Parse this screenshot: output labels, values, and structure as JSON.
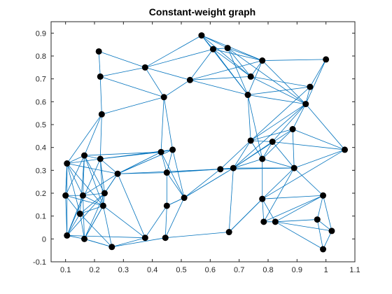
{
  "chart_data": {
    "type": "scatter",
    "title": "Constant-weight graph",
    "xlabel": "",
    "ylabel": "",
    "xlim": [
      0.05,
      1.1
    ],
    "ylim": [
      -0.1,
      0.95
    ],
    "xticks": [
      "0.1",
      "0.2",
      "0.3",
      "0.4",
      "0.5",
      "0.6",
      "0.7",
      "0.8",
      "0.9",
      "1",
      "1.1"
    ],
    "yticks": [
      "-0.1",
      "0",
      "0.1",
      "0.2",
      "0.3",
      "0.4",
      "0.5",
      "0.6",
      "0.7",
      "0.8",
      "0.9"
    ],
    "grid": false,
    "colors": {
      "edge": "#0072bd",
      "node": "#000000",
      "axis": "#262626"
    },
    "nodes": [
      {
        "x": 0.57,
        "y": 0.89
      },
      {
        "x": 0.61,
        "y": 0.83
      },
      {
        "x": 0.66,
        "y": 0.835
      },
      {
        "x": 0.78,
        "y": 0.78
      },
      {
        "x": 1.0,
        "y": 0.785
      },
      {
        "x": 0.74,
        "y": 0.71
      },
      {
        "x": 0.945,
        "y": 0.665
      },
      {
        "x": 0.73,
        "y": 0.63
      },
      {
        "x": 0.93,
        "y": 0.59
      },
      {
        "x": 0.53,
        "y": 0.695
      },
      {
        "x": 0.375,
        "y": 0.75
      },
      {
        "x": 0.215,
        "y": 0.82
      },
      {
        "x": 0.22,
        "y": 0.71
      },
      {
        "x": 0.44,
        "y": 0.62
      },
      {
        "x": 0.225,
        "y": 0.545
      },
      {
        "x": 0.885,
        "y": 0.48
      },
      {
        "x": 0.74,
        "y": 0.43
      },
      {
        "x": 0.815,
        "y": 0.425
      },
      {
        "x": 1.065,
        "y": 0.39
      },
      {
        "x": 0.47,
        "y": 0.39
      },
      {
        "x": 0.43,
        "y": 0.38
      },
      {
        "x": 0.165,
        "y": 0.365
      },
      {
        "x": 0.22,
        "y": 0.35
      },
      {
        "x": 0.105,
        "y": 0.33
      },
      {
        "x": 0.78,
        "y": 0.35
      },
      {
        "x": 0.89,
        "y": 0.31
      },
      {
        "x": 0.68,
        "y": 0.31
      },
      {
        "x": 0.635,
        "y": 0.305
      },
      {
        "x": 0.45,
        "y": 0.29
      },
      {
        "x": 0.28,
        "y": 0.285
      },
      {
        "x": 0.1,
        "y": 0.19
      },
      {
        "x": 0.16,
        "y": 0.19
      },
      {
        "x": 0.235,
        "y": 0.2
      },
      {
        "x": 0.51,
        "y": 0.18
      },
      {
        "x": 0.78,
        "y": 0.175
      },
      {
        "x": 0.99,
        "y": 0.19
      },
      {
        "x": 0.23,
        "y": 0.145
      },
      {
        "x": 0.45,
        "y": 0.145
      },
      {
        "x": 0.15,
        "y": 0.11
      },
      {
        "x": 0.97,
        "y": 0.085
      },
      {
        "x": 0.785,
        "y": 0.075
      },
      {
        "x": 0.825,
        "y": 0.075
      },
      {
        "x": 0.105,
        "y": 0.015
      },
      {
        "x": 0.165,
        "y": 0.0
      },
      {
        "x": 1.02,
        "y": 0.035
      },
      {
        "x": 0.665,
        "y": 0.03
      },
      {
        "x": 0.375,
        "y": 0.005
      },
      {
        "x": 0.445,
        "y": 0.005
      },
      {
        "x": 0.26,
        "y": -0.035
      },
      {
        "x": 0.99,
        "y": -0.045
      }
    ],
    "edges": [
      [
        0,
        1
      ],
      [
        0,
        2
      ],
      [
        0,
        3
      ],
      [
        0,
        10
      ],
      [
        0,
        5
      ],
      [
        0,
        7
      ],
      [
        1,
        2
      ],
      [
        1,
        9
      ],
      [
        1,
        3
      ],
      [
        1,
        5
      ],
      [
        1,
        7
      ],
      [
        1,
        10
      ],
      [
        2,
        3
      ],
      [
        2,
        5
      ],
      [
        2,
        7
      ],
      [
        2,
        8
      ],
      [
        3,
        4
      ],
      [
        3,
        7
      ],
      [
        3,
        8
      ],
      [
        3,
        9
      ],
      [
        3,
        5
      ],
      [
        4,
        8
      ],
      [
        4,
        6
      ],
      [
        5,
        6
      ],
      [
        5,
        9
      ],
      [
        5,
        8
      ],
      [
        6,
        7
      ],
      [
        6,
        8
      ],
      [
        6,
        16
      ],
      [
        7,
        9
      ],
      [
        7,
        8
      ],
      [
        7,
        16
      ],
      [
        7,
        24
      ],
      [
        8,
        16
      ],
      [
        8,
        17
      ],
      [
        8,
        15
      ],
      [
        8,
        18
      ],
      [
        8,
        26
      ],
      [
        9,
        10
      ],
      [
        9,
        13
      ],
      [
        10,
        11
      ],
      [
        10,
        12
      ],
      [
        10,
        13
      ],
      [
        11,
        12
      ],
      [
        12,
        13
      ],
      [
        12,
        14
      ],
      [
        13,
        14
      ],
      [
        13,
        19
      ],
      [
        13,
        20
      ],
      [
        14,
        21
      ],
      [
        14,
        22
      ],
      [
        14,
        23
      ],
      [
        15,
        16
      ],
      [
        15,
        18
      ],
      [
        15,
        25
      ],
      [
        15,
        24
      ],
      [
        15,
        26
      ],
      [
        16,
        17
      ],
      [
        16,
        24
      ],
      [
        16,
        27
      ],
      [
        16,
        26
      ],
      [
        17,
        18
      ],
      [
        17,
        25
      ],
      [
        17,
        26
      ],
      [
        17,
        24
      ],
      [
        18,
        25
      ],
      [
        18,
        34
      ],
      [
        19,
        20
      ],
      [
        19,
        28
      ],
      [
        19,
        33
      ],
      [
        19,
        29
      ],
      [
        20,
        21
      ],
      [
        20,
        22
      ],
      [
        20,
        28
      ],
      [
        20,
        29
      ],
      [
        20,
        33
      ],
      [
        21,
        22
      ],
      [
        21,
        23
      ],
      [
        21,
        30
      ],
      [
        21,
        31
      ],
      [
        21,
        32
      ],
      [
        21,
        36
      ],
      [
        21,
        38
      ],
      [
        22,
        23
      ],
      [
        22,
        29
      ],
      [
        22,
        32
      ],
      [
        22,
        19
      ],
      [
        22,
        42
      ],
      [
        23,
        29
      ],
      [
        23,
        30
      ],
      [
        23,
        31
      ],
      [
        23,
        36
      ],
      [
        23,
        38
      ],
      [
        23,
        42
      ],
      [
        24,
        25
      ],
      [
        24,
        26
      ],
      [
        24,
        34
      ],
      [
        25,
        27
      ],
      [
        25,
        26
      ],
      [
        25,
        34
      ],
      [
        25,
        35
      ],
      [
        25,
        40
      ],
      [
        26,
        27
      ],
      [
        26,
        28
      ],
      [
        26,
        33
      ],
      [
        26,
        45
      ],
      [
        27,
        28
      ],
      [
        27,
        29
      ],
      [
        27,
        33
      ],
      [
        28,
        29
      ],
      [
        28,
        33
      ],
      [
        28,
        37
      ],
      [
        29,
        31
      ],
      [
        29,
        32
      ],
      [
        29,
        46
      ],
      [
        29,
        19
      ],
      [
        29,
        20
      ],
      [
        30,
        31
      ],
      [
        30,
        38
      ],
      [
        30,
        42
      ],
      [
        30,
        36
      ],
      [
        31,
        32
      ],
      [
        31,
        36
      ],
      [
        31,
        42
      ],
      [
        31,
        43
      ],
      [
        32,
        36
      ],
      [
        32,
        38
      ],
      [
        32,
        43
      ],
      [
        33,
        37
      ],
      [
        33,
        47
      ],
      [
        33,
        26
      ],
      [
        34,
        35
      ],
      [
        34,
        40
      ],
      [
        34,
        41
      ],
      [
        34,
        45
      ],
      [
        35,
        39
      ],
      [
        35,
        44
      ],
      [
        35,
        40
      ],
      [
        35,
        41
      ],
      [
        36,
        38
      ],
      [
        36,
        43
      ],
      [
        36,
        48
      ],
      [
        36,
        46
      ],
      [
        37,
        46
      ],
      [
        37,
        47
      ],
      [
        37,
        33
      ],
      [
        38,
        42
      ],
      [
        38,
        43
      ],
      [
        38,
        48
      ],
      [
        39,
        44
      ],
      [
        39,
        41
      ],
      [
        39,
        49
      ],
      [
        40,
        41
      ],
      [
        41,
        44
      ],
      [
        41,
        49
      ],
      [
        42,
        43
      ],
      [
        42,
        46
      ],
      [
        43,
        48
      ],
      [
        44,
        49
      ],
      [
        45,
        47
      ],
      [
        45,
        34
      ],
      [
        46,
        48
      ],
      [
        47,
        48
      ],
      [
        30,
        23
      ],
      [
        32,
        29
      ],
      [
        36,
        22
      ],
      [
        42,
        32
      ],
      [
        43,
        36
      ],
      [
        48,
        43
      ]
    ]
  }
}
